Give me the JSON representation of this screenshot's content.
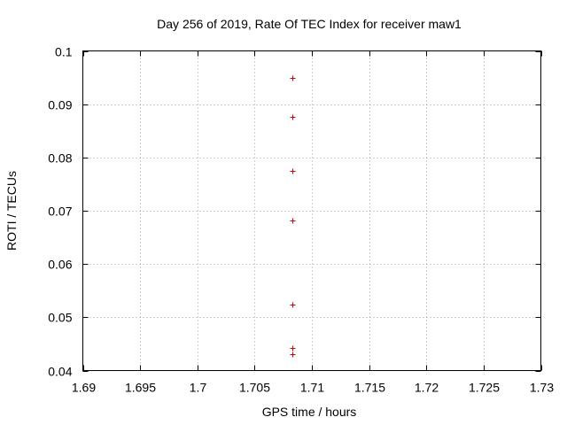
{
  "chart_data": {
    "type": "scatter",
    "title": "Day 256 of 2019, Rate Of TEC Index for receiver maw1",
    "xlabel": "GPS time / hours",
    "ylabel": "ROTI / TECUs",
    "xlim": [
      1.69,
      1.73
    ],
    "ylim": [
      0.04,
      0.1
    ],
    "xticks": [
      1.69,
      1.695,
      1.7,
      1.705,
      1.71,
      1.715,
      1.72,
      1.725,
      1.73
    ],
    "xtick_labels": [
      "1.69",
      "1.695",
      "1.7",
      "1.705",
      "1.71",
      "1.715",
      "1.72",
      "1.725",
      "1.73"
    ],
    "yticks": [
      0.04,
      0.05,
      0.06,
      0.07,
      0.08,
      0.09,
      0.1
    ],
    "ytick_labels": [
      "0.04",
      "0.05",
      "0.06",
      "0.07",
      "0.08",
      "0.09",
      "0.1"
    ],
    "grid": true,
    "marker": "+",
    "series": [
      {
        "name": "ROTI",
        "color": "#cc0000",
        "x": [
          1.7083,
          1.7083,
          1.7083,
          1.7083,
          1.7083,
          1.7083,
          1.7083
        ],
        "y": [
          0.095,
          0.0877,
          0.0774,
          0.0682,
          0.0523,
          0.0443,
          0.043
        ]
      }
    ]
  }
}
